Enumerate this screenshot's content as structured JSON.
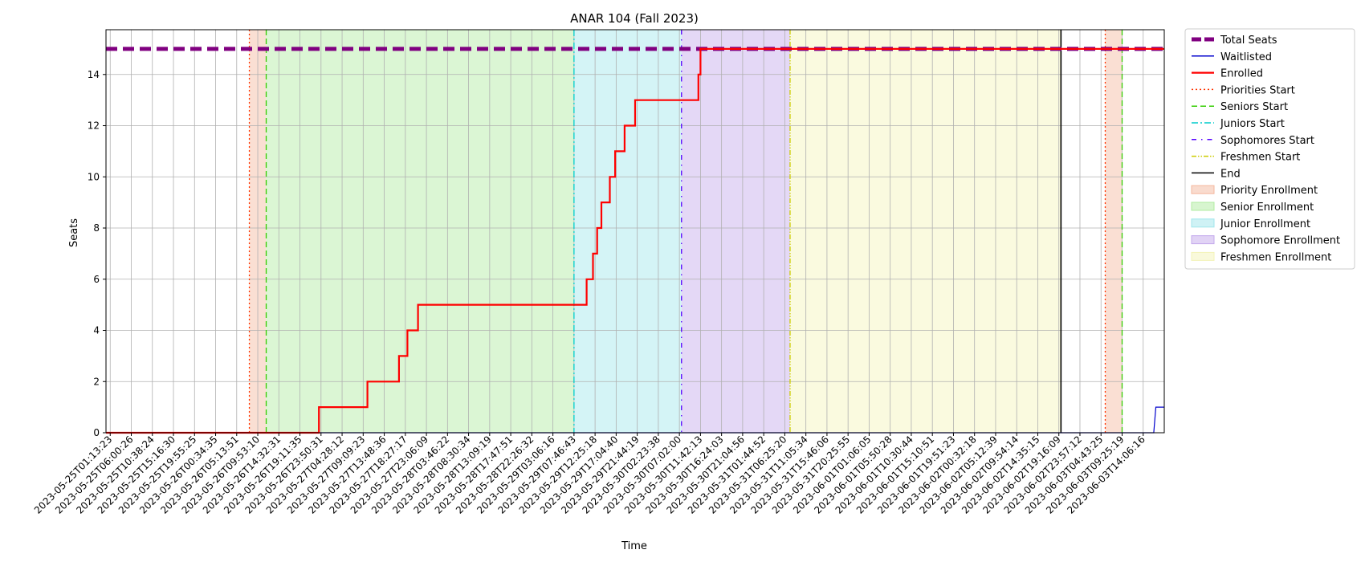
{
  "chart_data": {
    "type": "line",
    "title": "ANAR 104 (Fall 2023)",
    "xlabel": "Time",
    "ylabel": "Seats",
    "ylim": [
      0,
      15.75
    ],
    "grid": true,
    "legend_placement": "outside-top-right",
    "x_ticks": [
      "2023-05-25T01:13:23",
      "2023-05-25T06:00:26",
      "2023-05-25T10:38:24",
      "2023-05-25T15:16:30",
      "2023-05-25T19:55:25",
      "2023-05-26T00:34:35",
      "2023-05-26T05:13:51",
      "2023-05-26T09:53:10",
      "2023-05-26T14:32:31",
      "2023-05-26T19:11:35",
      "2023-05-26T23:50:31",
      "2023-05-27T04:28:12",
      "2023-05-27T09:09:23",
      "2023-05-27T13:48:36",
      "2023-05-27T18:27:17",
      "2023-05-27T23:06:09",
      "2023-05-28T03:46:22",
      "2023-05-28T08:30:34",
      "2023-05-28T13:09:19",
      "2023-05-28T17:47:51",
      "2023-05-28T22:26:32",
      "2023-05-29T03:06:16",
      "2023-05-29T07:46:43",
      "2023-05-29T12:25:18",
      "2023-05-29T17:04:40",
      "2023-05-29T21:44:19",
      "2023-05-30T02:23:38",
      "2023-05-30T07:02:00",
      "2023-05-30T11:42:13",
      "2023-05-30T16:24:03",
      "2023-05-30T21:04:56",
      "2023-05-31T01:44:52",
      "2023-05-31T06:25:20",
      "2023-05-31T11:05:34",
      "2023-05-31T15:46:06",
      "2023-05-31T20:25:55",
      "2023-06-01T01:06:05",
      "2023-06-01T05:50:28",
      "2023-06-01T10:30:44",
      "2023-06-01T15:10:51",
      "2023-06-01T19:51:23",
      "2023-06-02T00:32:18",
      "2023-06-02T05:12:39",
      "2023-06-02T09:54:14",
      "2023-06-02T14:35:15",
      "2023-06-02T19:16:09",
      "2023-06-02T23:57:12",
      "2023-06-03T04:43:25",
      "2023-06-03T09:25:19",
      "2023-06-03T14:06:16"
    ],
    "y_ticks": [
      0,
      2,
      4,
      6,
      8,
      10,
      12,
      14
    ],
    "series": [
      {
        "name": "Total Seats",
        "color": "#800080",
        "style": "dashed-thick",
        "x": [
          -0.2,
          50.0
        ],
        "y": [
          15,
          15
        ]
      },
      {
        "name": "Waitlisted",
        "color": "#0000cc",
        "style": "solid-thin",
        "x": [
          -0.2,
          49.5,
          49.6,
          50.0
        ],
        "y": [
          0,
          0,
          1,
          1
        ]
      },
      {
        "name": "Enrolled",
        "color": "#ff0000",
        "style": "solid-thick",
        "x": [
          -0.2,
          9.9,
          9.9,
          12.2,
          12.2,
          13.7,
          13.7,
          14.1,
          14.1,
          14.6,
          14.6,
          22.6,
          22.6,
          22.9,
          22.9,
          23.1,
          23.1,
          23.3,
          23.3,
          23.7,
          23.7,
          23.9,
          23.9,
          23.95,
          23.95,
          24.4,
          24.4,
          24.9,
          24.9,
          27.9,
          27.9,
          28.0,
          28.0,
          50.0
        ],
        "y": [
          0,
          0,
          1,
          1,
          2,
          2,
          3,
          3,
          4,
          4,
          5,
          5,
          6,
          6,
          7,
          7,
          8,
          8,
          9,
          9,
          10,
          10,
          10,
          10,
          11,
          11,
          12,
          12,
          13,
          13,
          14,
          14,
          15,
          15
        ]
      }
    ],
    "phase_lines": [
      {
        "name": "Priorities Start",
        "color": "#ff3300",
        "style": "dotted",
        "x": [
          6.6,
          47.2
        ]
      },
      {
        "name": "Seniors Start",
        "color": "#33cc00",
        "style": "dashed",
        "x": [
          7.4,
          48.0
        ]
      },
      {
        "name": "Juniors Start",
        "color": "#00cccc",
        "style": "dashdot",
        "x": [
          22.0
        ]
      },
      {
        "name": "Sophomores Start",
        "color": "#5500ff",
        "style": "loosely-dashdot",
        "x": [
          27.1
        ]
      },
      {
        "name": "Freshmen Start",
        "color": "#cccc00",
        "style": "dashdotdot",
        "x": [
          32.25
        ]
      },
      {
        "name": "End",
        "color": "#000000",
        "style": "solid",
        "x": [
          45.1
        ]
      }
    ],
    "phases": [
      {
        "name": "Priority Enrollment",
        "color": "#f4b79e",
        "ranges": [
          [
            6.6,
            7.4
          ],
          [
            47.2,
            48.0
          ]
        ]
      },
      {
        "name": "Senior Enrollment",
        "color": "#b0eca0",
        "ranges": [
          [
            7.4,
            22.0
          ]
        ]
      },
      {
        "name": "Junior Enrollment",
        "color": "#a0e6ec",
        "ranges": [
          [
            22.0,
            27.1
          ]
        ]
      },
      {
        "name": "Sophomore Enrollment",
        "color": "#c3a8ec",
        "ranges": [
          [
            27.1,
            32.25
          ]
        ]
      },
      {
        "name": "Freshmen Enrollment",
        "color": "#f3f3b8",
        "ranges": [
          [
            32.25,
            45.1
          ]
        ]
      }
    ],
    "legend_entries": [
      "Total Seats",
      "Waitlisted",
      "Enrolled",
      "Priorities Start",
      "Seniors Start",
      "Juniors Start",
      "Sophomores Start",
      "Freshmen Start",
      "End",
      "Priority Enrollment",
      "Senior Enrollment",
      "Junior Enrollment",
      "Sophomore Enrollment",
      "Freshmen Enrollment"
    ]
  }
}
